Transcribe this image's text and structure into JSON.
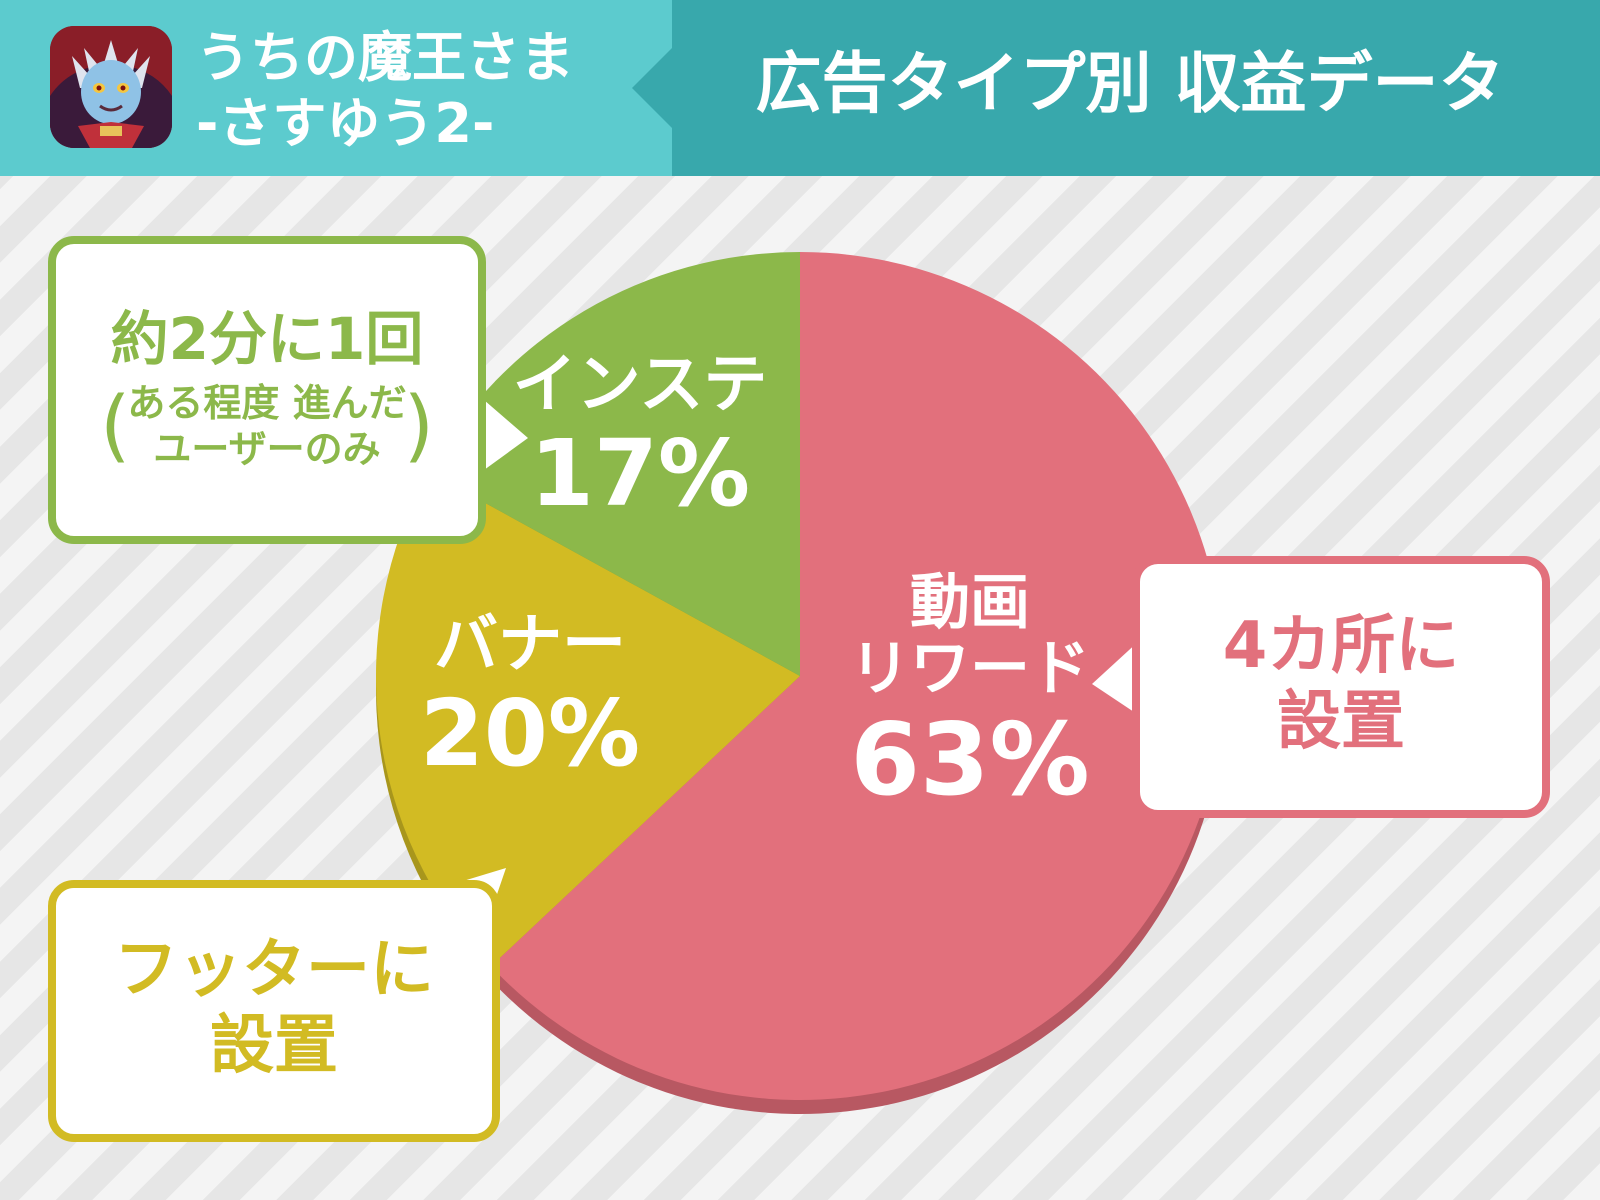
{
  "header": {
    "app_name_line1": "うちの魔王さま",
    "app_name_line2": "-さすゆう2-",
    "title": "広告タイプ別 収益データ"
  },
  "colors": {
    "header_left": "#5ccbce",
    "header_right": "#38a8ac",
    "video_reward": "#e2707c",
    "video_reward_side": "#b85862",
    "banner": "#d2bb23",
    "banner_side": "#a8961c",
    "interstitial": "#8cb84a",
    "interstitial_side": "#6f9439"
  },
  "chart_data": {
    "type": "pie",
    "unit": "%",
    "slices": [
      {
        "key": "video_reward",
        "label_line1": "動画",
        "label_line2": "リワード",
        "value": 63,
        "value_text": "63%",
        "color": "#e2707c"
      },
      {
        "key": "banner",
        "label_line1": "バナー",
        "value": 20,
        "value_text": "20%",
        "color": "#d2bb23"
      },
      {
        "key": "interstitial",
        "label_line1": "インステ",
        "value": 17,
        "value_text": "17%",
        "color": "#8cb84a"
      }
    ]
  },
  "callouts": {
    "interstitial": {
      "line1": "約2分に1回",
      "paren_open": "(",
      "line2": "ある程度 進んだ",
      "line3": "ユーザーのみ",
      "paren_close": ")"
    },
    "video_reward": {
      "line1": "4カ所に",
      "line2": "設置"
    },
    "banner": {
      "line1": "フッターに",
      "line2": "設置"
    }
  }
}
